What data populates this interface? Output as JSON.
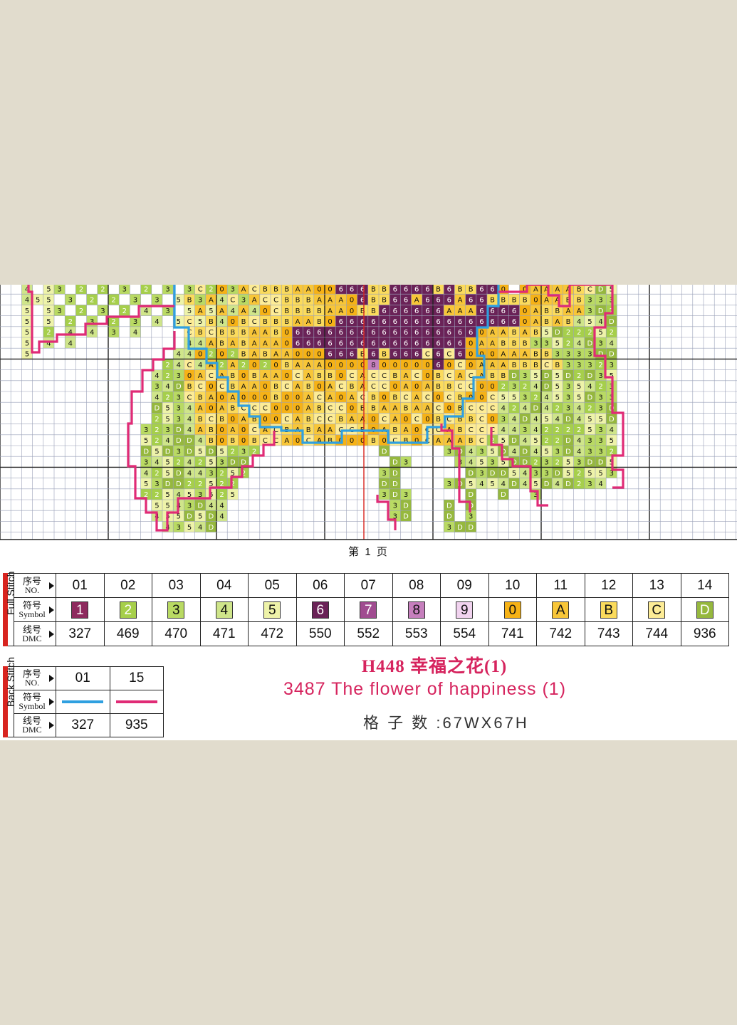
{
  "page_label": "第 1 页",
  "full_stitch": {
    "side_label": "Full Stitch",
    "row_labels": {
      "no_cn": "序号",
      "no_en": "NO.",
      "symbol_cn": "符号",
      "symbol_en": "Symbol",
      "dmc_cn": "线号",
      "dmc_en": "DMC"
    },
    "items": [
      {
        "no": "01",
        "symbol": "1",
        "dmc": "327",
        "color": "#8e2a5e",
        "text_color": "#ffffff"
      },
      {
        "no": "02",
        "symbol": "2",
        "dmc": "469",
        "color": "#a6cf4b",
        "text_color": "#ffffff"
      },
      {
        "no": "03",
        "symbol": "3",
        "dmc": "470",
        "color": "#b9da63",
        "text_color": "#111111"
      },
      {
        "no": "04",
        "symbol": "4",
        "dmc": "471",
        "color": "#cfe58a",
        "text_color": "#111111"
      },
      {
        "no": "05",
        "symbol": "5",
        "dmc": "472",
        "color": "#eef3a9",
        "text_color": "#111111"
      },
      {
        "no": "06",
        "symbol": "6",
        "dmc": "550",
        "color": "#6a2257",
        "text_color": "#ffffff"
      },
      {
        "no": "07",
        "symbol": "7",
        "dmc": "552",
        "color": "#a04c90",
        "text_color": "#ffffff"
      },
      {
        "no": "08",
        "symbol": "8",
        "dmc": "553",
        "color": "#c67fbd",
        "text_color": "#111111"
      },
      {
        "no": "09",
        "symbol": "9",
        "dmc": "554",
        "color": "#f1d3ef",
        "text_color": "#111111"
      },
      {
        "no": "10",
        "symbol": "0",
        "dmc": "741",
        "color": "#f6b216",
        "text_color": "#111111"
      },
      {
        "no": "11",
        "symbol": "A",
        "dmc": "742",
        "color": "#f8c638",
        "text_color": "#111111"
      },
      {
        "no": "12",
        "symbol": "B",
        "dmc": "743",
        "color": "#fbdb5c",
        "text_color": "#111111"
      },
      {
        "no": "13",
        "symbol": "C",
        "dmc": "744",
        "color": "#fdec96",
        "text_color": "#111111"
      },
      {
        "no": "14",
        "symbol": "D",
        "dmc": "936",
        "color": "#96b83e",
        "text_color": "#ffffff"
      }
    ]
  },
  "back_stitch": {
    "side_label": "Back Stitch",
    "row_labels": {
      "no_cn": "序号",
      "no_en": "NO.",
      "symbol_cn": "符号",
      "symbol_en": "Symbol",
      "dmc_cn": "线号",
      "dmc_en": "DMC"
    },
    "items": [
      {
        "no": "01",
        "dmc": "327",
        "color": "#2fa0e0"
      },
      {
        "no": "15",
        "dmc": "935",
        "color": "#e02b76"
      }
    ]
  },
  "title": {
    "code": "H448 幸福之花(1)",
    "english": "3487  The flower of happiness (1)",
    "grid_size": "格 子 数 :67WX67H"
  },
  "pattern": {
    "rows": [
      "..4.53.2.2.3.2.3.3.2.3.CBBBAA00666BB6666.6BB660.0AAAABC..",
      "..455.3.2.2.3.3.5.3.4.3.CCBBBAAA06BB66A666A66BBBB0AABB333",
      "..5.53.2.3.2.4.3.5.5.4.4.CBBBBAA0BB666666AAA66660ABBAA",
      "..5.5.2.3.2.3.4.5.5.4.BCBBBAAB0666666666666666660ABAB",
      "..5.2.4.4.3.4.....BCBBBAAB0666666666666666660AABAB",
      "..5.4.4..........44ABABAAA066666666666666660AABBB3",
      "..5.............44.2.2.ABAA000666.6.666.6.6000AAABB333",
      "..................4.2.2.2.BAAA000080000060.0AAABBBCB33"
    ]
  }
}
